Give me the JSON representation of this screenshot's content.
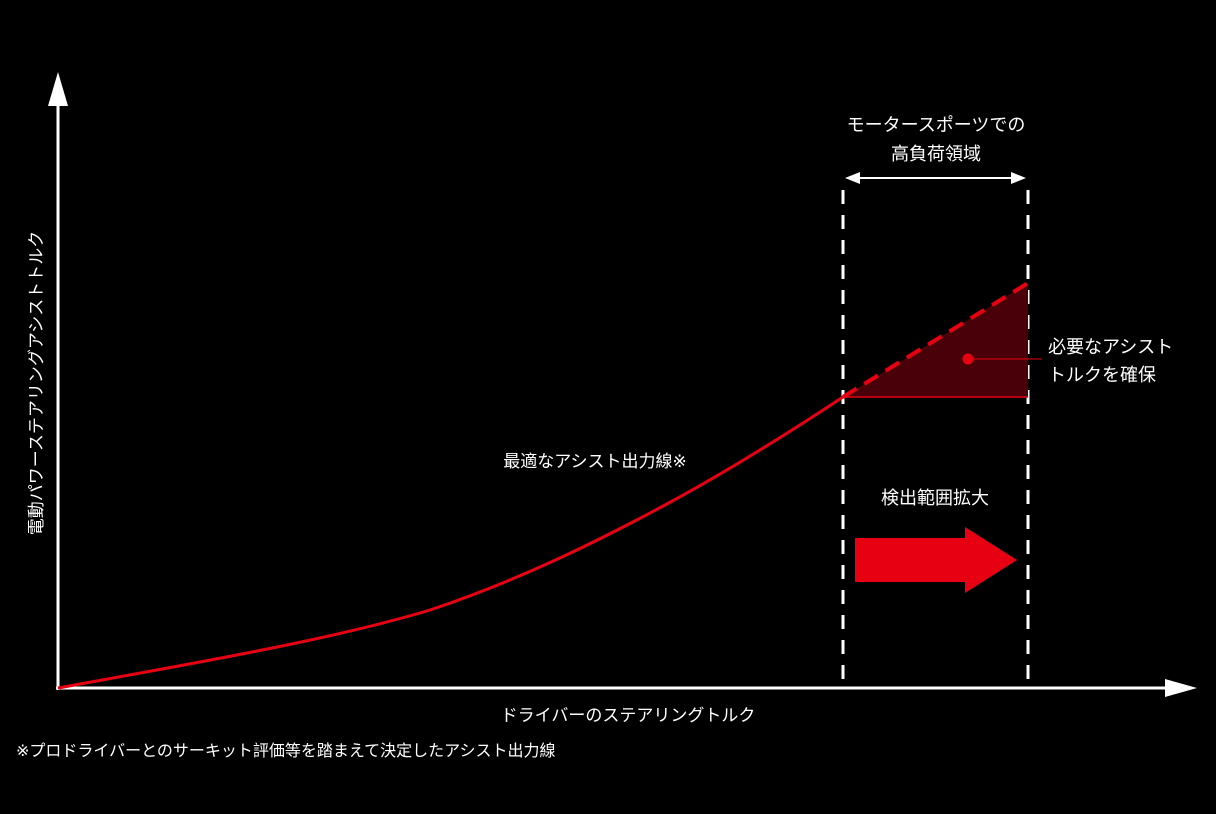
{
  "diagram": {
    "y_axis_label": "電動パワーステアリングアシストトルク",
    "x_axis_label": "ドライバーのステアリングトルク",
    "curve_label": "最適なアシスト出力線※",
    "region_label_line1": "モータースポーツでの",
    "region_label_line2": "高負荷領域",
    "assist_label_line1": "必要なアシスト",
    "assist_label_line2": "トルクを確保",
    "arrow_label": "検出範囲拡大",
    "footnote": "※プロドライバーとのサーキット評価等を踏まえて決定したアシスト出力線",
    "colors": {
      "accent": "#e60012",
      "fill": "#4a0008",
      "axis": "#ffffff",
      "background": "#000000"
    }
  }
}
